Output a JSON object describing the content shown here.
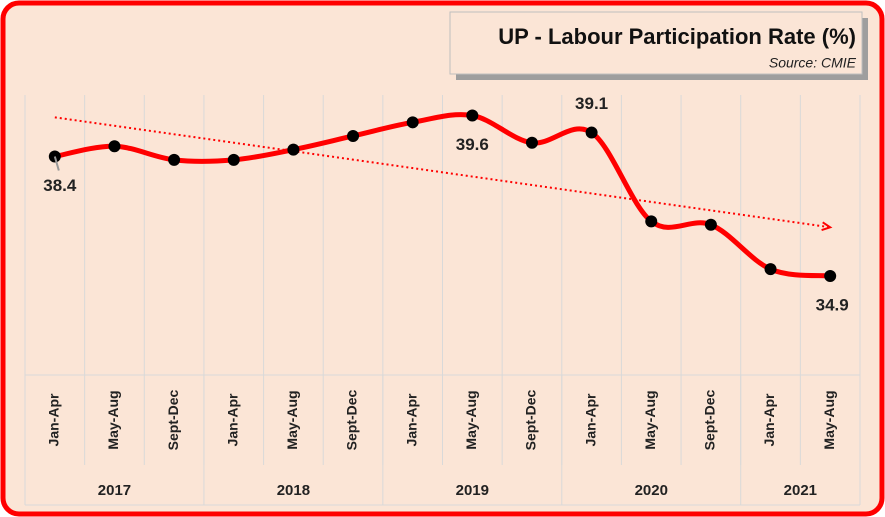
{
  "chart_data": {
    "type": "line",
    "title": "UP - Labour Participation Rate (%)",
    "subtitle": "Source: CMIE",
    "categories": [
      "Jan-Apr",
      "May-Aug",
      "Sept-Dec",
      "Jan-Apr",
      "May-Aug",
      "Sept-Dec",
      "Jan-Apr",
      "May-Aug",
      "Sept-Dec",
      "Jan-Apr",
      "May-Aug",
      "Sept-Dec",
      "Jan-Apr",
      "May-Aug"
    ],
    "groups": [
      {
        "name": "2017",
        "count": 3
      },
      {
        "name": "2018",
        "count": 3
      },
      {
        "name": "2019",
        "count": 3
      },
      {
        "name": "2020",
        "count": 3
      },
      {
        "name": "2021",
        "count": 2
      }
    ],
    "series": [
      {
        "name": "UP",
        "color": "#ff0000",
        "values": [
          38.4,
          38.7,
          38.3,
          38.3,
          38.6,
          39.0,
          39.4,
          39.6,
          38.8,
          39.1,
          36.5,
          36.4,
          35.1,
          34.9
        ],
        "show_label": [
          true,
          false,
          false,
          false,
          false,
          false,
          false,
          true,
          false,
          true,
          false,
          false,
          false,
          true
        ]
      }
    ],
    "ylim": [
      32,
      40.2
    ],
    "smooth": true,
    "trendline": true,
    "grid": true
  }
}
